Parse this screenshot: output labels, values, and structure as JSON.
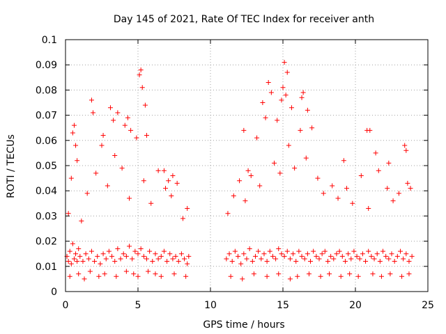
{
  "chart_data": {
    "type": "scatter",
    "title": "Day 145 of 2021, Rate Of TEC Index for receiver anth",
    "xlabel": "GPS time / hours",
    "ylabel": "ROTI / TECUs",
    "xlim": [
      0,
      25
    ],
    "ylim": [
      0,
      0.1
    ],
    "xticks": [
      0,
      5,
      10,
      15,
      20,
      25
    ],
    "xtick_labels": [
      "0",
      "5",
      "10",
      "15",
      "20",
      "25"
    ],
    "yticks": [
      0,
      0.01,
      0.02,
      0.03,
      0.04,
      0.05,
      0.06,
      0.07,
      0.08,
      0.09,
      0.1
    ],
    "ytick_labels": [
      "0",
      "0.01",
      "0.02",
      "0.03",
      "0.04",
      "0.05",
      "0.06",
      "0.07",
      "0.08",
      "0.09",
      "0.1"
    ],
    "grid": true,
    "marker": "+",
    "color": "#ff0000",
    "data_gap_hours": [
      8.6,
      11.1
    ],
    "series": [
      {
        "x": [
          0.1,
          0.2,
          0.3,
          0.4,
          0.5,
          0.6,
          0.7,
          0.8,
          0.9,
          1.0,
          1.2,
          1.4,
          1.6,
          1.8,
          2.0,
          2.2,
          2.4,
          2.6,
          2.8,
          3.0,
          3.2,
          3.4,
          3.6,
          3.8,
          4.0,
          4.2,
          4.4,
          4.6,
          4.8,
          5.0,
          5.2,
          5.4,
          5.6,
          5.8,
          6.0,
          6.2,
          6.4,
          6.6,
          6.8,
          7.0,
          7.2,
          7.4,
          7.6,
          7.8,
          8.0,
          8.2,
          8.4,
          8.5,
          0.5,
          0.6,
          0.7,
          1.8,
          1.9,
          2.6,
          3.1,
          3.3,
          3.6,
          4.1,
          4.3,
          4.5,
          5.1,
          5.2,
          5.3,
          5.5,
          5.6,
          6.8,
          7.1,
          7.4,
          0.2,
          0.4,
          0.8,
          1.1,
          1.5,
          2.1,
          2.5,
          2.9,
          3.4,
          3.9,
          4.4,
          4.9,
          5.4,
          5.9,
          6.4,
          6.9,
          7.3,
          7.7,
          8.1,
          8.4,
          0.3,
          0.9,
          1.3,
          1.7,
          2.3,
          2.7,
          3.5,
          4.2,
          4.7,
          5.0,
          5.7,
          6.2,
          6.6,
          7.5,
          8.3,
          11.1,
          11.3,
          11.5,
          11.7,
          11.9,
          12.1,
          12.3,
          12.5,
          12.7,
          12.9,
          13.1,
          13.3,
          13.5,
          13.7,
          13.9,
          14.1,
          14.3,
          14.5,
          14.7,
          14.9,
          15.1,
          15.3,
          15.5,
          15.7,
          15.9,
          16.1,
          16.3,
          16.5,
          16.7,
          16.9,
          17.1,
          17.3,
          17.5,
          17.7,
          17.9,
          18.1,
          18.3,
          18.5,
          18.7,
          18.9,
          19.1,
          19.3,
          19.5,
          19.7,
          19.9,
          20.1,
          20.3,
          20.5,
          20.7,
          20.9,
          21.1,
          21.3,
          21.5,
          21.7,
          21.9,
          22.1,
          22.3,
          22.5,
          22.7,
          22.9,
          23.1,
          23.3,
          23.5,
          23.7,
          23.9,
          12.3,
          12.6,
          13.2,
          13.6,
          13.8,
          14.0,
          14.2,
          14.6,
          14.9,
          15.0,
          15.1,
          15.2,
          15.3,
          15.6,
          16.2,
          16.3,
          16.4,
          16.7,
          17.0,
          19.2,
          20.8,
          21.0,
          21.4,
          22.3,
          23.4,
          23.5,
          11.2,
          11.6,
          12.0,
          12.4,
          12.8,
          13.4,
          14.4,
          14.8,
          15.4,
          15.8,
          16.6,
          17.4,
          17.8,
          18.4,
          18.8,
          19.4,
          19.8,
          20.4,
          20.9,
          21.6,
          22.2,
          22.6,
          23.0,
          23.6,
          23.8,
          11.4,
          12.2,
          13.0,
          13.9,
          14.7,
          15.5,
          16.0,
          16.8,
          17.6,
          18.2,
          19.0,
          19.6,
          20.2,
          21.2,
          21.8,
          22.4,
          23.2,
          23.7
        ],
        "y": [
          0.014,
          0.012,
          0.016,
          0.011,
          0.019,
          0.013,
          0.015,
          0.012,
          0.017,
          0.014,
          0.012,
          0.015,
          0.013,
          0.016,
          0.012,
          0.014,
          0.011,
          0.015,
          0.013,
          0.016,
          0.014,
          0.012,
          0.017,
          0.013,
          0.015,
          0.014,
          0.018,
          0.013,
          0.016,
          0.015,
          0.017,
          0.014,
          0.013,
          0.016,
          0.012,
          0.015,
          0.013,
          0.014,
          0.016,
          0.012,
          0.015,
          0.013,
          0.014,
          0.012,
          0.015,
          0.013,
          0.011,
          0.014,
          0.063,
          0.066,
          0.058,
          0.076,
          0.071,
          0.062,
          0.073,
          0.068,
          0.071,
          0.066,
          0.069,
          0.064,
          0.086,
          0.088,
          0.081,
          0.074,
          0.062,
          0.048,
          0.044,
          0.046,
          0.031,
          0.045,
          0.052,
          0.028,
          0.039,
          0.047,
          0.058,
          0.042,
          0.054,
          0.049,
          0.037,
          0.061,
          0.044,
          0.035,
          0.048,
          0.041,
          0.038,
          0.043,
          0.029,
          0.033,
          0.006,
          0.007,
          0.005,
          0.008,
          0.006,
          0.007,
          0.006,
          0.008,
          0.007,
          0.006,
          0.008,
          0.007,
          0.006,
          0.007,
          0.006,
          0.013,
          0.015,
          0.012,
          0.016,
          0.014,
          0.011,
          0.015,
          0.013,
          0.017,
          0.012,
          0.014,
          0.016,
          0.013,
          0.015,
          0.012,
          0.016,
          0.014,
          0.013,
          0.017,
          0.015,
          0.014,
          0.016,
          0.013,
          0.015,
          0.012,
          0.016,
          0.014,
          0.013,
          0.015,
          0.012,
          0.016,
          0.014,
          0.013,
          0.015,
          0.016,
          0.012,
          0.014,
          0.013,
          0.015,
          0.016,
          0.014,
          0.012,
          0.015,
          0.013,
          0.016,
          0.014,
          0.013,
          0.015,
          0.012,
          0.016,
          0.014,
          0.013,
          0.015,
          0.012,
          0.016,
          0.014,
          0.013,
          0.015,
          0.012,
          0.014,
          0.016,
          0.013,
          0.015,
          0.012,
          0.014,
          0.064,
          0.048,
          0.061,
          0.075,
          0.069,
          0.083,
          0.079,
          0.068,
          0.076,
          0.081,
          0.091,
          0.078,
          0.087,
          0.073,
          0.064,
          0.077,
          0.079,
          0.072,
          0.065,
          0.052,
          0.064,
          0.064,
          0.055,
          0.051,
          0.058,
          0.056,
          0.031,
          0.038,
          0.044,
          0.036,
          0.046,
          0.042,
          0.051,
          0.047,
          0.058,
          0.049,
          0.053,
          0.045,
          0.039,
          0.042,
          0.037,
          0.041,
          0.035,
          0.046,
          0.033,
          0.048,
          0.041,
          0.036,
          0.039,
          0.043,
          0.041,
          0.006,
          0.005,
          0.007,
          0.006,
          0.007,
          0.005,
          0.006,
          0.007,
          0.006,
          0.007,
          0.006,
          0.007,
          0.006,
          0.007,
          0.006,
          0.007,
          0.006,
          0.007
        ]
      }
    ]
  }
}
